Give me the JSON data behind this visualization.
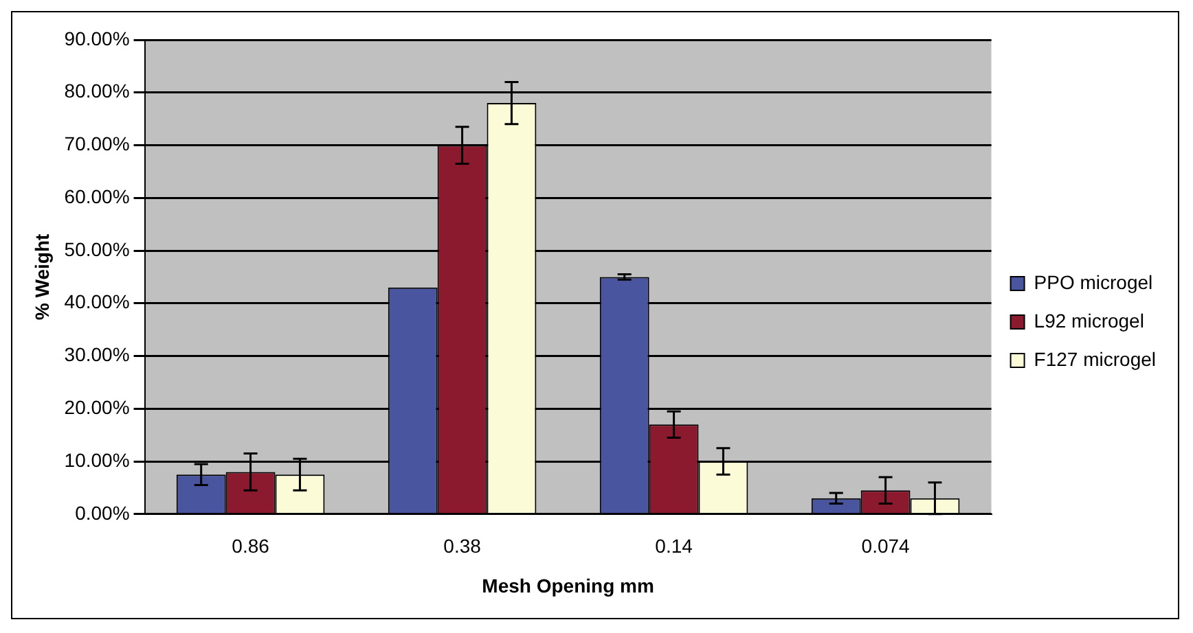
{
  "chart_data": {
    "type": "bar",
    "xlabel": "Mesh Opening mm",
    "ylabel": "% Weight",
    "categories": [
      "0.86",
      "0.38",
      "0.14",
      "0.074"
    ],
    "series": [
      {
        "name": "PPO microgel",
        "color": "#4a55a0",
        "values": [
          7.5,
          43,
          45,
          3
        ],
        "errors": [
          2,
          null,
          0.5,
          1
        ]
      },
      {
        "name": "L92 microgel",
        "color": "#8b1a2e",
        "values": [
          8,
          70,
          17,
          4.5
        ],
        "errors": [
          3.5,
          3.5,
          2.5,
          2.5
        ]
      },
      {
        "name": "F127 microgel",
        "color": "#fbfbd8",
        "values": [
          7.5,
          78,
          10,
          3
        ],
        "errors": [
          3,
          4,
          2.5,
          3
        ]
      }
    ],
    "ylim": [
      0,
      90
    ],
    "yticks": [
      {
        "value": 0,
        "label": "0.00%"
      },
      {
        "value": 10,
        "label": "10.00%"
      },
      {
        "value": 20,
        "label": "20.00%"
      },
      {
        "value": 30,
        "label": "30.00%"
      },
      {
        "value": 40,
        "label": "40.00%"
      },
      {
        "value": 50,
        "label": "50.00%"
      },
      {
        "value": 60,
        "label": "60.00%"
      },
      {
        "value": 70,
        "label": "70.00%"
      },
      {
        "value": 80,
        "label": "80.00%"
      },
      {
        "value": 90,
        "label": "90.00%"
      }
    ],
    "grid": "y",
    "legend": "right"
  }
}
